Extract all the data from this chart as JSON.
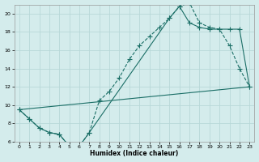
{
  "xlabel": "Humidex (Indice chaleur)",
  "bg_color": "#d4ecec",
  "grid_color": "#b8d8d8",
  "line_color": "#1a6e66",
  "xlim": [
    -0.5,
    23.5
  ],
  "ylim": [
    6,
    21
  ],
  "xticks": [
    0,
    1,
    2,
    3,
    4,
    5,
    6,
    7,
    8,
    9,
    10,
    11,
    12,
    13,
    14,
    15,
    16,
    17,
    18,
    19,
    20,
    21,
    22,
    23
  ],
  "yticks": [
    6,
    8,
    10,
    12,
    14,
    16,
    18,
    20
  ],
  "line1_x": [
    0,
    1,
    2,
    3,
    4,
    5,
    6,
    7,
    8,
    9,
    10,
    11,
    12,
    13,
    14,
    15,
    16,
    17,
    18,
    19,
    20,
    21,
    22,
    23
  ],
  "line1_y": [
    9.5,
    8.5,
    7.5,
    7.0,
    6.8,
    5.5,
    5.5,
    7.0,
    10.5,
    11.5,
    13.0,
    15.0,
    16.5,
    17.5,
    18.5,
    19.5,
    20.8,
    21.2,
    19.0,
    18.5,
    18.3,
    16.5,
    14.0,
    12.0
  ],
  "line2_x": [
    0,
    1,
    2,
    3,
    4,
    5,
    6,
    7,
    15,
    16,
    17,
    18,
    19,
    20,
    21,
    22,
    23
  ],
  "line2_y": [
    9.5,
    8.5,
    7.5,
    7.0,
    6.8,
    5.5,
    5.5,
    7.0,
    19.5,
    20.8,
    19.0,
    18.5,
    18.3,
    18.3,
    18.3,
    18.3,
    12.0
  ],
  "line3_x": [
    0,
    23
  ],
  "line3_y": [
    9.5,
    12.0
  ]
}
